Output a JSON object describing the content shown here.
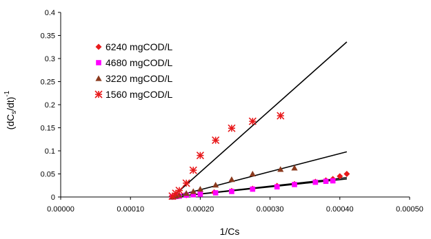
{
  "chart_data": {
    "type": "scatter",
    "xlabel": "1/Cs",
    "ylabel": "(dC_s/dt)^-1",
    "ylabel_parts": {
      "base": "(dC",
      "sub": "s",
      "mid": "/dt)",
      "sup": "-1"
    },
    "xlim": [
      0,
      0.0005
    ],
    "ylim": [
      0,
      0.4
    ],
    "xticks": [
      "0.00000",
      "0.00010",
      "0.00020",
      "0.00030",
      "0.00040",
      "0.00050"
    ],
    "xtick_values": [
      0,
      0.0001,
      0.0002,
      0.0003,
      0.0004,
      0.0005
    ],
    "yticks": [
      "0",
      "0.05",
      "0.1",
      "0.15",
      "0.2",
      "0.25",
      "0.3",
      "0.35",
      "0.4"
    ],
    "ytick_values": [
      0,
      0.05,
      0.1,
      0.15,
      0.2,
      0.25,
      0.3,
      0.35,
      0.4
    ],
    "grid": false,
    "legend_position": "top-left",
    "series": [
      {
        "name": "6240 mgCOD/L",
        "marker": "diamond",
        "color": "#e8191b",
        "points": [
          [
            0.00016,
            0.0
          ],
          [
            0.000165,
            0.001
          ],
          [
            0.00017,
            0.002
          ],
          [
            0.00018,
            0.004
          ],
          [
            0.00019,
            0.006
          ],
          [
            0.0002,
            0.007
          ],
          [
            0.00022,
            0.01
          ],
          [
            0.000245,
            0.013
          ],
          [
            0.000275,
            0.018
          ],
          [
            0.00031,
            0.024
          ],
          [
            0.000335,
            0.028
          ],
          [
            0.000365,
            0.033
          ],
          [
            0.00038,
            0.036
          ],
          [
            0.00039,
            0.039
          ],
          [
            0.0004,
            0.045
          ],
          [
            0.00041,
            0.05
          ]
        ],
        "fit": [
          [
            0.00016,
            0.0
          ],
          [
            0.00041,
            0.042
          ]
        ]
      },
      {
        "name": "4680 mgCOD/L",
        "marker": "square",
        "color": "#ff00ff",
        "points": [
          [
            0.00016,
            0.0
          ],
          [
            0.000165,
            0.001
          ],
          [
            0.00017,
            0.002
          ],
          [
            0.00018,
            0.004
          ],
          [
            0.00019,
            0.005
          ],
          [
            0.0002,
            0.006
          ],
          [
            0.000222,
            0.009
          ],
          [
            0.000245,
            0.012
          ],
          [
            0.000275,
            0.017
          ],
          [
            0.00031,
            0.022
          ],
          [
            0.000335,
            0.027
          ],
          [
            0.000365,
            0.032
          ],
          [
            0.00038,
            0.034
          ],
          [
            0.00039,
            0.035
          ]
        ],
        "fit": [
          [
            0.00016,
            0.0
          ],
          [
            0.00041,
            0.039
          ]
        ]
      },
      {
        "name": "3220 mgCOD/L",
        "marker": "triangle",
        "color": "#8b3a1e",
        "points": [
          [
            0.00016,
            0.0
          ],
          [
            0.000165,
            0.002
          ],
          [
            0.00017,
            0.004
          ],
          [
            0.00018,
            0.008
          ],
          [
            0.00019,
            0.012
          ],
          [
            0.0002,
            0.017
          ],
          [
            0.000222,
            0.026
          ],
          [
            0.000245,
            0.038
          ],
          [
            0.000275,
            0.05
          ],
          [
            0.000315,
            0.06
          ],
          [
            0.000335,
            0.063
          ]
        ],
        "fit": [
          [
            0.00016,
            0.0
          ],
          [
            0.00041,
            0.098
          ]
        ]
      },
      {
        "name": "1560 mgCOD/L",
        "marker": "asterisk",
        "color": "#e8191b",
        "points": [
          [
            0.00016,
            0.002
          ],
          [
            0.000165,
            0.008
          ],
          [
            0.00017,
            0.014
          ],
          [
            0.00018,
            0.03
          ],
          [
            0.00019,
            0.058
          ],
          [
            0.0002,
            0.09
          ],
          [
            0.000222,
            0.123
          ],
          [
            0.000245,
            0.149
          ],
          [
            0.000275,
            0.164
          ],
          [
            0.000315,
            0.176
          ]
        ],
        "fit": [
          [
            0.00016,
            0.0
          ],
          [
            0.00041,
            0.336
          ]
        ]
      }
    ]
  }
}
